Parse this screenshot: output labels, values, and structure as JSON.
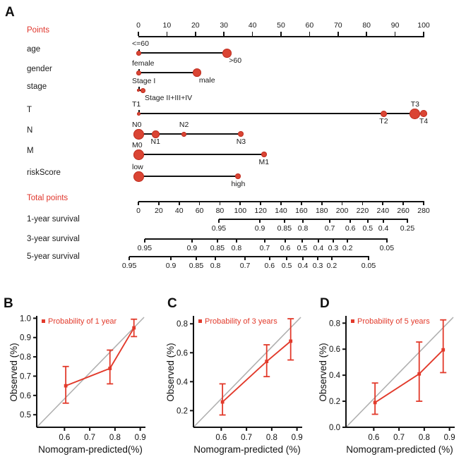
{
  "figure": {
    "background": "#ffffff",
    "colors": {
      "red_label": "#e0362c",
      "dot_fill": "#da4534",
      "dot_edge": "#c03124",
      "axis": "#111111",
      "diagonal": "#b0b0b0",
      "cal_red": "#e23a2b"
    },
    "panel_letters": [
      "A",
      "B",
      "C",
      "D"
    ]
  },
  "chart_data": [
    {
      "type": "table",
      "title": "nomogram",
      "points_axis": {
        "label": "Points",
        "min": 0,
        "max": 100,
        "step": 10
      },
      "rows": [
        {
          "variable": "age",
          "categories": [
            {
              "label": "<=60",
              "points": 0,
              "dot": 7,
              "side": "above-left"
            },
            {
              "label": ">60",
              "points": 31,
              "dot": 13,
              "side": "below-left"
            }
          ]
        },
        {
          "variable": "gender",
          "categories": [
            {
              "label": "female",
              "points": 0,
              "dot": 7,
              "side": "above-left"
            },
            {
              "label": "male",
              "points": 20.5,
              "dot": 12,
              "side": "below-left"
            }
          ]
        },
        {
          "variable": "stage",
          "categories": [
            {
              "label": "Stage I",
              "points": 0,
              "dot": 4,
              "side": "above-left"
            },
            {
              "label": "Stage II+III+IV",
              "points": 1.5,
              "dot": 7,
              "side": "below-left"
            }
          ]
        },
        {
          "variable": "T",
          "categories": [
            {
              "label": "T1",
              "points": 0,
              "dot": 5,
              "side": "above-left"
            },
            {
              "label": "T2",
              "points": 86,
              "dot": 9,
              "side": "below"
            },
            {
              "label": "T3",
              "points": 97,
              "dot": 15,
              "side": "above"
            },
            {
              "label": "T4",
              "points": 100,
              "dot": 10,
              "side": "below"
            }
          ]
        },
        {
          "variable": "N",
          "categories": [
            {
              "label": "N0",
              "points": 0,
              "dot": 15,
              "side": "above-left"
            },
            {
              "label": "N1",
              "points": 6,
              "dot": 11,
              "side": "below"
            },
            {
              "label": "N2",
              "points": 16,
              "dot": 7,
              "side": "above"
            },
            {
              "label": "N3",
              "points": 36,
              "dot": 8,
              "side": "below"
            }
          ]
        },
        {
          "variable": "M",
          "categories": [
            {
              "label": "M0",
              "points": 0,
              "dot": 15,
              "side": "above-left"
            },
            {
              "label": "M1",
              "points": 44,
              "dot": 8,
              "side": "below"
            }
          ]
        },
        {
          "variable": "riskScore",
          "categories": [
            {
              "label": "low",
              "points": 0,
              "dot": 15,
              "side": "above-left"
            },
            {
              "label": "high",
              "points": 35,
              "dot": 8,
              "side": "below"
            }
          ]
        }
      ],
      "total_points_axis": {
        "label": "Total points",
        "min": 0,
        "max": 280,
        "step": 20
      },
      "survival_axes": [
        {
          "label": "1-year survival",
          "ticks": [
            "0.95",
            "0.9",
            "0.85",
            "0.8",
            "0.7",
            "0.6",
            "0.5",
            "0.4",
            "0.25"
          ],
          "frac": [
            0.282,
            0.426,
            0.512,
            0.577,
            0.671,
            0.743,
            0.804,
            0.859,
            0.943
          ]
        },
        {
          "label": "3-year survival",
          "ticks": [
            "0.95",
            "0.9",
            "0.85",
            "0.8",
            "0.7",
            "0.6",
            "0.5",
            "0.4",
            "0.3",
            "0.2",
            "0.05"
          ],
          "frac": [
            0.022,
            0.188,
            0.277,
            0.344,
            0.443,
            0.515,
            0.574,
            0.631,
            0.683,
            0.733,
            0.871
          ]
        },
        {
          "label": "5-year survival",
          "ticks": [
            "0.95",
            "0.9",
            "0.85",
            "0.8",
            "0.7",
            "0.6",
            "0.5",
            "0.4",
            "0.3",
            "0.2",
            "0.05"
          ],
          "frac": [
            -0.032,
            0.114,
            0.203,
            0.27,
            0.374,
            0.46,
            0.52,
            0.577,
            0.629,
            0.678,
            0.807
          ]
        }
      ]
    },
    {
      "type": "line",
      "panel": "B",
      "legend": "Probability of 1 year",
      "xlabel": "Nomogram-predicted(%)",
      "ylabel": "Observed (%)",
      "xlim": [
        0.49,
        0.915
      ],
      "ylim": [
        0.435,
        1.005
      ],
      "xticks": [
        "0.6",
        "0.7",
        "0.8",
        "0.9"
      ],
      "yticks": [
        "0.5",
        "0.6",
        "0.7",
        "0.8",
        "0.9",
        "1.0"
      ],
      "x": [
        0.605,
        0.78,
        0.875
      ],
      "y": [
        0.65,
        0.74,
        0.95
      ],
      "err_lo": [
        0.56,
        0.66,
        0.905
      ],
      "err_hi": [
        0.75,
        0.835,
        0.995
      ],
      "diagonal": true
    },
    {
      "type": "line",
      "panel": "C",
      "legend": "Probability of 3 years",
      "xlabel": "Nomogram-predicted (%)",
      "ylabel": "Observed (%)",
      "xlim": [
        0.49,
        0.915
      ],
      "ylim": [
        0.085,
        0.845
      ],
      "xticks": [
        "0.6",
        "0.7",
        "0.8",
        "0.9"
      ],
      "yticks": [
        "0.2",
        "0.4",
        "0.6",
        "0.8"
      ],
      "x": [
        0.605,
        0.78,
        0.875
      ],
      "y": [
        0.26,
        0.54,
        0.68
      ],
      "err_lo": [
        0.17,
        0.435,
        0.55
      ],
      "err_hi": [
        0.385,
        0.655,
        0.835
      ],
      "diagonal": true
    },
    {
      "type": "line",
      "panel": "D",
      "legend": "Probability of 5 years",
      "xlabel": "Nomogram-predicted (%)",
      "ylabel": "Observed (%)",
      "xlim": [
        0.49,
        0.915
      ],
      "ylim": [
        0.0,
        0.845
      ],
      "xticks": [
        "0.6",
        "0.7",
        "0.8",
        "0.9"
      ],
      "yticks": [
        "0.0",
        "0.2",
        "0.4",
        "0.6",
        "0.8"
      ],
      "x": [
        0.605,
        0.78,
        0.875
      ],
      "y": [
        0.19,
        0.41,
        0.595
      ],
      "err_lo": [
        0.1,
        0.2,
        0.42
      ],
      "err_hi": [
        0.34,
        0.655,
        0.825
      ],
      "diagonal": true
    }
  ]
}
